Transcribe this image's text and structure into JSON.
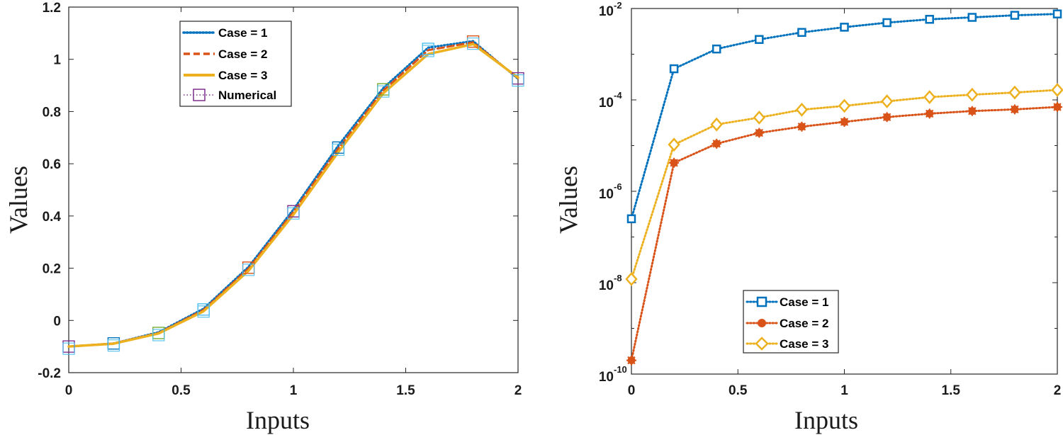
{
  "chart_data": [
    {
      "type": "line",
      "xlabel": "Inputs",
      "ylabel": "Values",
      "xlim": [
        0,
        2
      ],
      "ylim": [
        -0.2,
        1.2
      ],
      "xticks": [
        0,
        0.5,
        1,
        1.5,
        2
      ],
      "xtick_labels": [
        "0",
        "0.5",
        "1",
        "1.5",
        "2"
      ],
      "yticks": [
        -0.2,
        0,
        0.2,
        0.4,
        0.6,
        0.8,
        1,
        1.2
      ],
      "ytick_labels": [
        "-0.2",
        "0",
        "0.2",
        "0.4",
        "0.6",
        "0.8",
        "1",
        "1.2"
      ],
      "x": [
        0,
        0.2,
        0.4,
        0.6,
        0.8,
        1.0,
        1.2,
        1.4,
        1.6,
        1.8,
        2.0
      ],
      "series": [
        {
          "name": "Case = 1",
          "label": "Case = 1",
          "style": "dotted",
          "color": "#0072BD",
          "values": [
            -0.1,
            -0.088,
            -0.045,
            0.045,
            0.205,
            0.425,
            0.67,
            0.89,
            1.045,
            1.07,
            0.925
          ]
        },
        {
          "name": "Case = 2",
          "label": "Case = 2",
          "style": "dashed",
          "color": "#D95319",
          "values": [
            -0.1,
            -0.088,
            -0.048,
            0.04,
            0.198,
            0.415,
            0.658,
            0.88,
            1.035,
            1.065,
            0.928
          ]
        },
        {
          "name": "Case = 3",
          "label": "Case = 3",
          "style": "solid",
          "color": "#EDB120",
          "values": [
            -0.1,
            -0.089,
            -0.05,
            0.035,
            0.19,
            0.405,
            0.645,
            0.87,
            1.02,
            1.058,
            0.93
          ]
        }
      ],
      "numerical": {
        "name": "Numerical",
        "label": "Numerical",
        "marker": "square",
        "line_color": "#7E2F8E",
        "marker_colors": [
          "#7E2F8E",
          "#0072BD",
          "#77AC30",
          "#4DBEEE",
          "#D95319"
        ],
        "values": [
          -0.1,
          -0.088,
          -0.048,
          0.042,
          0.202,
          0.418,
          0.662,
          0.885,
          1.04,
          1.068,
          0.927
        ]
      },
      "legend_position": "top-center"
    },
    {
      "type": "line",
      "scale_y": "log",
      "xlabel": "Inputs",
      "ylabel": "Values",
      "xlim": [
        0,
        2
      ],
      "ylim_exponent": [
        -10,
        -2
      ],
      "xticks": [
        0,
        0.5,
        1,
        1.5,
        2
      ],
      "xtick_labels": [
        "0",
        "0.5",
        "1",
        "1.5",
        "2"
      ],
      "ytick_base": "10",
      "ytick_exponents": [
        "-10",
        "-8",
        "-6",
        "-4",
        "-2"
      ],
      "x": [
        0,
        0.2,
        0.4,
        0.6,
        0.8,
        1.0,
        1.2,
        1.4,
        1.6,
        1.8,
        2.0
      ],
      "series": [
        {
          "name": "Case = 1",
          "label": "Case = 1",
          "marker": "square",
          "color": "#0072BD",
          "values": [
            2.5e-07,
            0.00048,
            0.0013,
            0.0021,
            0.003,
            0.0039,
            0.0049,
            0.0058,
            0.0064,
            0.0071,
            0.0076
          ]
        },
        {
          "name": "Case = 2",
          "label": "Case = 2",
          "marker": "star",
          "color": "#D95319",
          "values": [
            2e-10,
            4.2e-06,
            1.1e-05,
            1.9e-05,
            2.6e-05,
            3.3e-05,
            4.2e-05,
            5e-05,
            5.7e-05,
            6.2e-05,
            7e-05
          ]
        },
        {
          "name": "Case = 3",
          "label": "Case = 3",
          "marker": "diamond",
          "color": "#EDB120",
          "values": [
            1.2e-08,
            1.05e-05,
            2.9e-05,
            4.1e-05,
            6.1e-05,
            7.4e-05,
            9.3e-05,
            0.000115,
            0.00013,
            0.000145,
            0.000165
          ]
        }
      ],
      "legend_position": "bottom-center"
    }
  ]
}
